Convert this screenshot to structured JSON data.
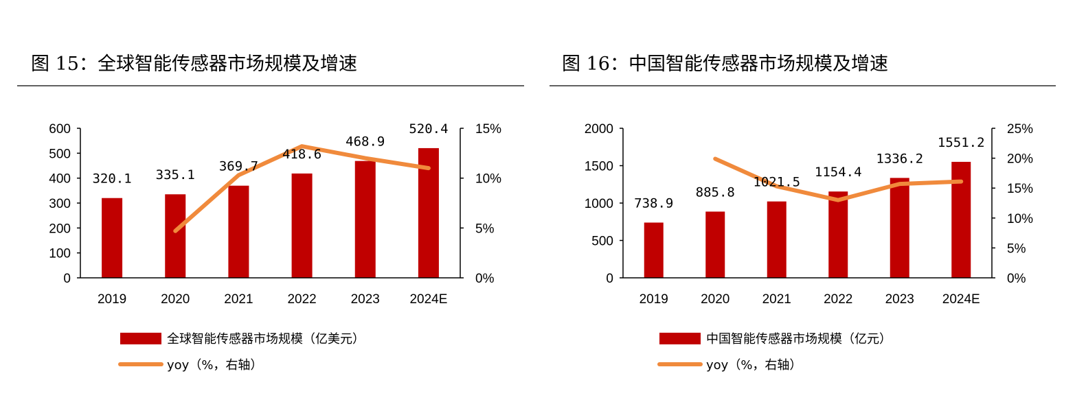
{
  "colors": {
    "bar": "#C00000",
    "line": "#F08A3C"
  },
  "chart_data": [
    {
      "type": "bar+line",
      "title": "图 15：全球智能传感器市场规模及增速",
      "categories": [
        "2019",
        "2020",
        "2021",
        "2022",
        "2023",
        "2024E"
      ],
      "series": [
        {
          "name": "全球智能传感器市场规模（亿美元）",
          "type": "bar",
          "axis": "left",
          "values": [
            320.1,
            335.1,
            369.7,
            418.6,
            468.9,
            520.4
          ],
          "labels": [
            "320.1",
            "335.1",
            "369.7",
            "418.6",
            "468.9",
            "520.4"
          ]
        },
        {
          "name": "yoy（%，右轴）",
          "type": "line",
          "axis": "right",
          "values": [
            null,
            4.7,
            10.3,
            13.2,
            12.0,
            11.0
          ]
        }
      ],
      "ylim": [
        0,
        600
      ],
      "yticks": [
        "0",
        "100",
        "200",
        "300",
        "400",
        "500",
        "600"
      ],
      "y2lim": [
        0,
        15
      ],
      "y2ticks": [
        "0%",
        "5%",
        "10%",
        "15%"
      ],
      "legend": "bottom-left"
    },
    {
      "type": "bar+line",
      "title": "图 16：中国智能传感器市场规模及增速",
      "categories": [
        "2019",
        "2020",
        "2021",
        "2022",
        "2023",
        "2024E"
      ],
      "series": [
        {
          "name": "中国智能传感器市场规模（亿元）",
          "type": "bar",
          "axis": "left",
          "values": [
            738.9,
            885.8,
            1021.5,
            1154.4,
            1336.2,
            1551.2
          ],
          "labels": [
            "738.9",
            "885.8",
            "1021.5",
            "1154.4",
            "1336.2",
            "1551.2"
          ]
        },
        {
          "name": "yoy（%，右轴）",
          "type": "line",
          "axis": "right",
          "values": [
            null,
            19.9,
            15.3,
            13.0,
            15.7,
            16.1
          ]
        }
      ],
      "ylim": [
        0,
        2000
      ],
      "yticks": [
        "0",
        "500",
        "1000",
        "1500",
        "2000"
      ],
      "y2lim": [
        0,
        25
      ],
      "y2ticks": [
        "0%",
        "5%",
        "10%",
        "15%",
        "20%",
        "25%"
      ],
      "legend": "bottom-left"
    }
  ]
}
